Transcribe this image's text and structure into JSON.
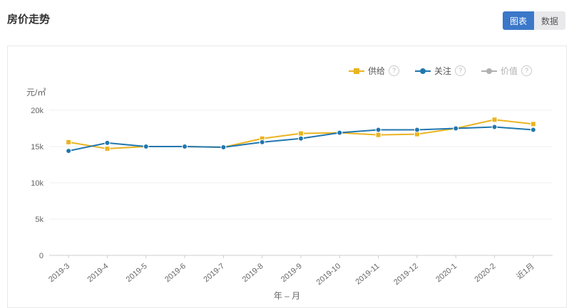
{
  "header": {
    "title": "房价走势",
    "tabs": [
      {
        "label": "图表",
        "active": true
      },
      {
        "label": "数据",
        "active": false
      }
    ]
  },
  "chart": {
    "unit_label": "元/㎡",
    "xaxis_title": "年 – 月",
    "legend": [
      {
        "label": "供给",
        "color": "#eab420",
        "symbol": "square",
        "disabled": false,
        "help_icon": "?"
      },
      {
        "label": "关注",
        "color": "#2176ae",
        "symbol": "circle",
        "disabled": false,
        "help_icon": "?"
      },
      {
        "label": "价值",
        "color": "#b0b0b0",
        "symbol": "circle",
        "disabled": true,
        "help_icon": "?"
      }
    ]
  },
  "chart_data": {
    "type": "line",
    "title": "房价走势",
    "xlabel": "年 – 月",
    "ylabel": "元/㎡",
    "ylim": [
      0,
      20000
    ],
    "grid": true,
    "legend_position": "top-right",
    "categories": [
      "2019-3",
      "2019-4",
      "2019-5",
      "2019-6",
      "2019-7",
      "2019-8",
      "2019-9",
      "2019-10",
      "2019-11",
      "2019-12",
      "2020-1",
      "2020-2",
      "近1月"
    ],
    "yticks": [
      {
        "value": 0,
        "label": "0"
      },
      {
        "value": 5000,
        "label": "5k"
      },
      {
        "value": 10000,
        "label": "10k"
      },
      {
        "value": 15000,
        "label": "15k"
      },
      {
        "value": 20000,
        "label": "20k"
      }
    ],
    "series": [
      {
        "name": "供给",
        "color": "#eab420",
        "symbol": "square",
        "values": [
          15600,
          14700,
          15000,
          15000,
          14900,
          16100,
          16800,
          16900,
          16600,
          16700,
          17500,
          18700,
          18100
        ]
      },
      {
        "name": "关注",
        "color": "#2176ae",
        "symbol": "circle",
        "values": [
          14400,
          15500,
          15000,
          15000,
          14900,
          15600,
          16100,
          16900,
          17300,
          17300,
          17500,
          17700,
          17300
        ]
      }
    ]
  }
}
